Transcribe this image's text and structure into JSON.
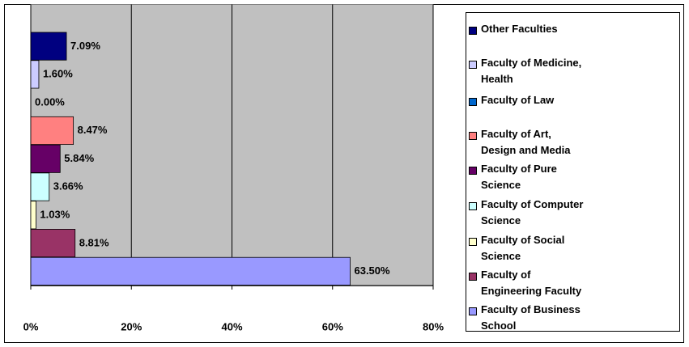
{
  "chart_data": {
    "type": "bar",
    "orientation": "horizontal",
    "categories": [
      "Other Faculties",
      "Faculty of Medicine, Health",
      "Faculty of Law",
      "Faculty of Art, Design and Media",
      "Faculty of Pure Science",
      "Faculty of Computer Science",
      "Faculty of Social Science",
      "Faculty of Engineering Faculty",
      "Faculty of Business School"
    ],
    "values": [
      7.09,
      1.6,
      0,
      8.47,
      5.84,
      3.66,
      1.03,
      8.81,
      63.5
    ],
    "value_labels": [
      "7.09%",
      "1.60%",
      "0.00%",
      "8.47%",
      "5.84%",
      "3.66%",
      "1.03%",
      "8.81%",
      "63.50%"
    ],
    "colors": [
      "#000080",
      "#ccccff",
      "#0066cc",
      "#ff8080",
      "#660066",
      "#ccffff",
      "#ffffcc",
      "#993366",
      "#9999ff"
    ],
    "xlim": [
      0,
      80
    ],
    "xticks": [
      {
        "value": 0,
        "label": "0%"
      },
      {
        "value": 20,
        "label": "20%"
      },
      {
        "value": 40,
        "label": "40%"
      },
      {
        "value": 60,
        "label": "60%"
      },
      {
        "value": 80,
        "label": "80%"
      }
    ],
    "grid": true,
    "legend": "right"
  }
}
